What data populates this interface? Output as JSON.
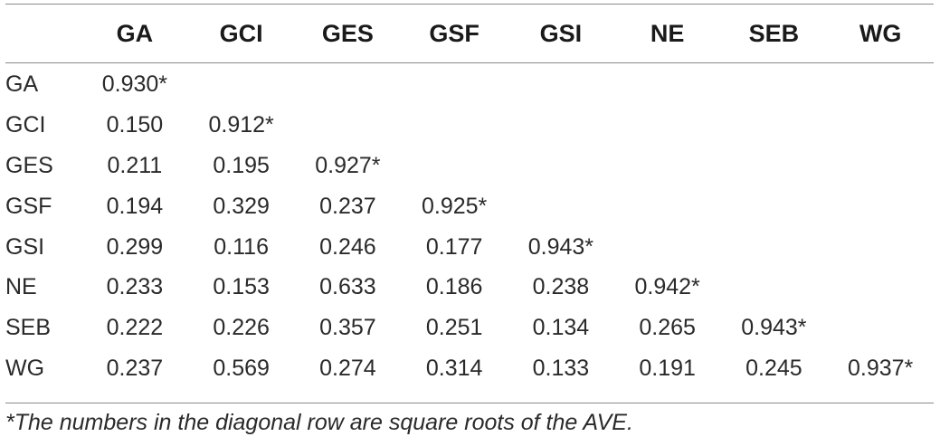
{
  "table": {
    "columns": [
      "",
      "GA",
      "GCI",
      "GES",
      "GSF",
      "GSI",
      "NE",
      "SEB",
      "WG"
    ],
    "rows": [
      {
        "label": "GA",
        "cells": [
          "0.930*",
          "",
          "",
          "",
          "",
          "",
          "",
          ""
        ]
      },
      {
        "label": "GCI",
        "cells": [
          "0.150",
          "0.912*",
          "",
          "",
          "",
          "",
          "",
          ""
        ]
      },
      {
        "label": "GES",
        "cells": [
          "0.211",
          "0.195",
          "0.927*",
          "",
          "",
          "",
          "",
          ""
        ]
      },
      {
        "label": "GSF",
        "cells": [
          "0.194",
          "0.329",
          "0.237",
          "0.925*",
          "",
          "",
          "",
          ""
        ]
      },
      {
        "label": "GSI",
        "cells": [
          "0.299",
          "0.116",
          "0.246",
          "0.177",
          "0.943*",
          "",
          "",
          ""
        ]
      },
      {
        "label": "NE",
        "cells": [
          "0.233",
          "0.153",
          "0.633",
          "0.186",
          "0.238",
          "0.942*",
          "",
          ""
        ]
      },
      {
        "label": "SEB",
        "cells": [
          "0.222",
          "0.226",
          "0.357",
          "0.251",
          "0.134",
          "0.265",
          "0.943*",
          ""
        ]
      },
      {
        "label": "WG",
        "cells": [
          "0.237",
          "0.569",
          "0.274",
          "0.314",
          "0.133",
          "0.191",
          "0.245",
          "0.937*"
        ]
      }
    ],
    "footnote": "*The numbers in the diagonal row are square roots of the AVE."
  }
}
